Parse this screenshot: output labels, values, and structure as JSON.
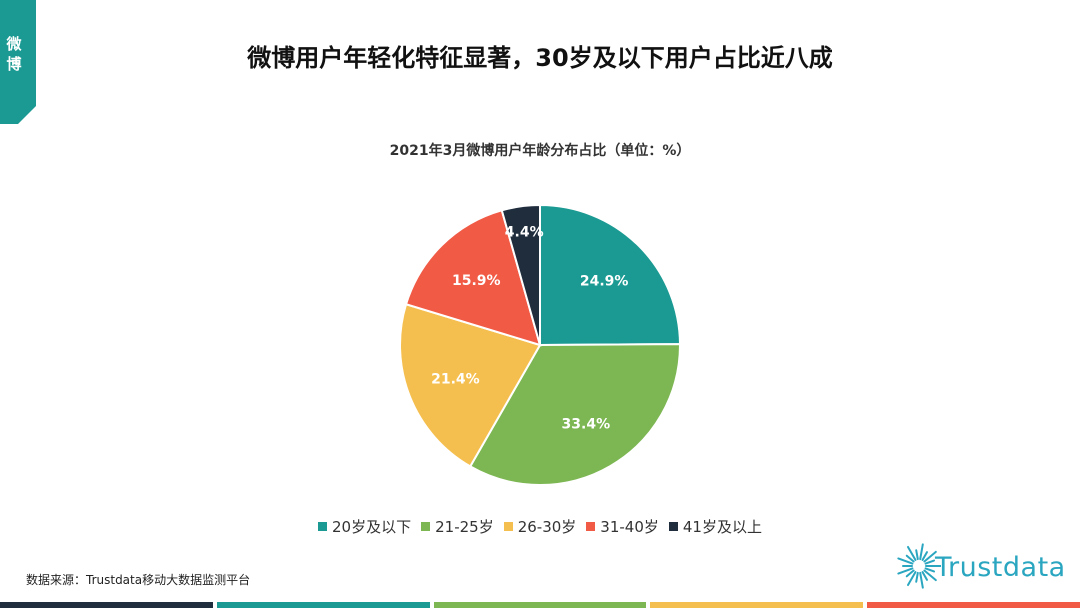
{
  "tab": {
    "label": "微博",
    "color": "#1a9a92"
  },
  "header": {
    "title": "微博用户年轻化特征显著，30岁及以下用户占比近八成"
  },
  "chart_data": {
    "type": "pie",
    "title": "2021年3月微博用户年龄分布占比（单位：%）",
    "categories": [
      "20岁及以下",
      "21-25岁",
      "26-30岁",
      "31-40岁",
      "41岁及以上"
    ],
    "values": [
      24.9,
      33.4,
      21.4,
      15.9,
      4.4
    ],
    "labels": [
      "24.9%",
      "33.4%",
      "21.4%",
      "15.9%",
      "4.4%"
    ],
    "colors": [
      "#1a9a92",
      "#7db753",
      "#f5bf4f",
      "#f15a45",
      "#1f2d3d"
    ],
    "legend_position": "bottom"
  },
  "footer": {
    "source": "数据来源：Trustdata移动大数据监测平台",
    "logo_text": "Trustdata",
    "logo_color": "#2aa6c0",
    "bar_colors": [
      "#1f2d3d",
      "#1a9a92",
      "#7db753",
      "#f5bf4f",
      "#f15a45"
    ]
  }
}
